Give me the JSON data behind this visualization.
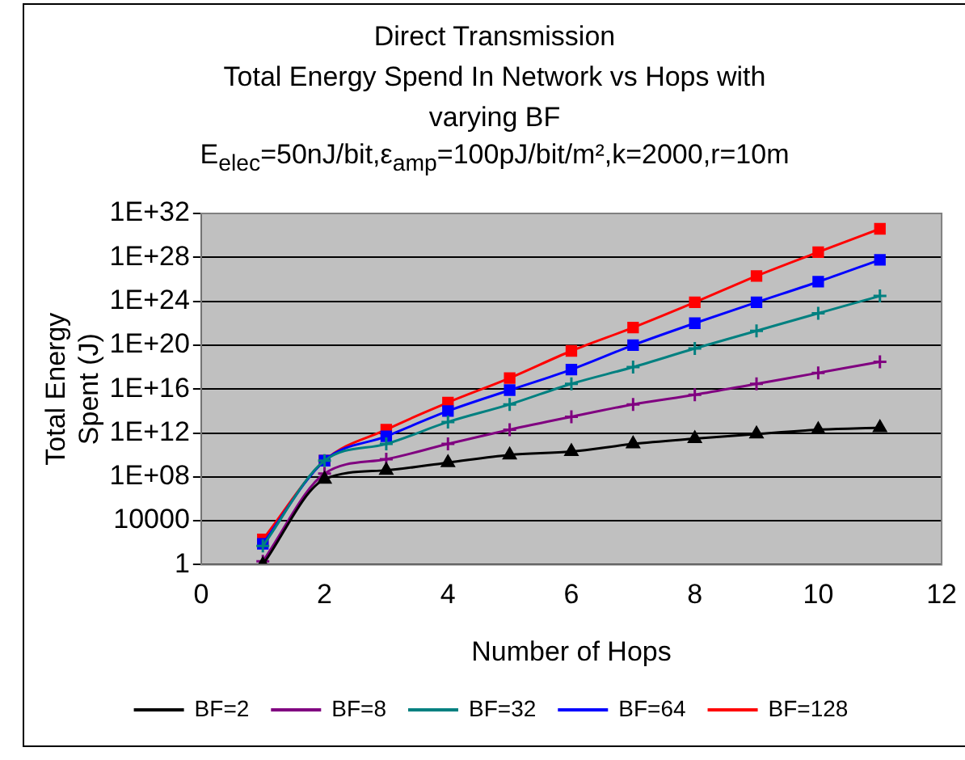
{
  "chart_data": {
    "type": "line",
    "title": "Direct Transmission\nTotal Energy Spend In Network vs Hops with\nvarying BF",
    "subtitle": "E$_{elec}$=50nJ/bit,ε$_{amp}$=100pJ/bit/m²,k=2000,r=10m",
    "xlabel": "Number of Hops",
    "ylabel": "Total Energy Spent (J)",
    "x": [
      1,
      2,
      3,
      4,
      5,
      6,
      7,
      8,
      9,
      10,
      11
    ],
    "series": [
      {
        "name": "BF=2",
        "color": "#000000",
        "marker": "triangle",
        "values": [
          1,
          60000000.0,
          400000000.0,
          2000000000.0,
          10000000000.0,
          20000000000.0,
          100000000000.0,
          300000000000.0,
          800000000000.0,
          2000000000000.0,
          3000000000000.0
        ]
      },
      {
        "name": "BF=8",
        "color": "#800080",
        "marker": "cross",
        "values": [
          2,
          200000000.0,
          4000000000.0,
          100000000000.0,
          2000000000000.0,
          30000000000000.0,
          400000000000000.0,
          3000000000000000.0,
          3e+16,
          3e+17,
          3e+18
        ]
      },
      {
        "name": "BF=32",
        "color": "#008080",
        "marker": "cross",
        "values": [
          50,
          3000000000.0,
          100000000000.0,
          10000000000000.0,
          400000000000000.0,
          3e+16,
          1e+18,
          5e+19,
          2e+21,
          8e+22,
          3e+24
        ]
      },
      {
        "name": "BF=64",
        "color": "#0000ff",
        "marker": "square",
        "values": [
          80,
          3000000000.0,
          500000000000.0,
          100000000000000.0,
          8000000000000000.0,
          6e+17,
          1e+20,
          1e+22,
          8e+23,
          6e+25,
          6e+27
        ]
      },
      {
        "name": "BF=128",
        "color": "#ff0000",
        "marker": "square",
        "values": [
          200,
          3000000000.0,
          2000000000000.0,
          600000000000000.0,
          1e+17,
          3e+19,
          4e+21,
          8e+23,
          2e+26,
          3e+28,
          4e+30
        ]
      }
    ],
    "log": "y",
    "xlim": [
      0,
      12
    ],
    "xticks": [
      0,
      2,
      4,
      6,
      8,
      10,
      12
    ],
    "ylim": [
      1,
      1e+32
    ],
    "yticks": [
      1,
      10000,
      {
        "value": 100000000.0,
        "label": "1E+08"
      },
      {
        "value": 1000000000000.0,
        "label": "1E+12"
      },
      {
        "value": 1e+16,
        "label": "1E+16"
      },
      {
        "value": 1e+20,
        "label": "1E+20"
      },
      {
        "value": 1e+24,
        "label": "1E+24"
      },
      {
        "value": 1e+28,
        "label": "1E+28"
      },
      {
        "value": 1e+32,
        "label": "1E+32"
      }
    ],
    "grid": "y",
    "legend": "bottom",
    "line_style": "solid"
  }
}
